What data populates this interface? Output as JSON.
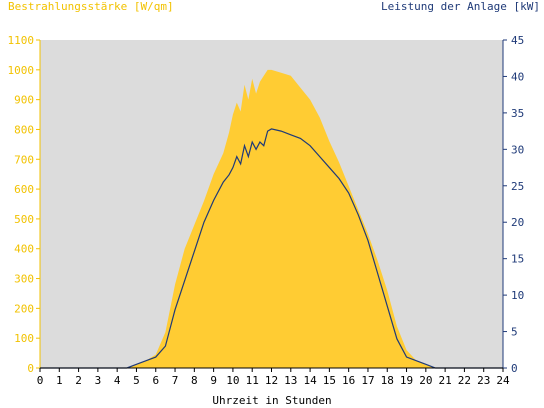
{
  "chart_data": {
    "type": "area",
    "title": "",
    "xlabel": "Uhrzeit in Stunden",
    "ylabel": "Bestrahlungsstärke [W/qm]",
    "y2label": "Leistung der Anlage [kW]",
    "xlim": [
      0,
      24
    ],
    "ylim": [
      0,
      1100
    ],
    "y2lim": [
      0,
      45
    ],
    "x_ticks": [
      "0",
      "1",
      "2",
      "3",
      "4",
      "5",
      "6",
      "7",
      "8",
      "9",
      "10",
      "11",
      "12",
      "13",
      "14",
      "15",
      "16",
      "17",
      "18",
      "19",
      "20",
      "21",
      "22",
      "23",
      "24"
    ],
    "y_ticks": [
      "0",
      "100",
      "200",
      "300",
      "400",
      "500",
      "600",
      "700",
      "800",
      "900",
      "1000",
      "1100"
    ],
    "y2_ticks": [
      "0",
      "5",
      "10",
      "15",
      "20",
      "25",
      "30",
      "35",
      "40",
      "45"
    ],
    "grid": false,
    "colors": {
      "plot_background": "#dcdcdc",
      "irradiance_fill": "#ffcc33",
      "power_line": "#1f3a78",
      "left_axis": "#f2c200",
      "right_axis": "#1f3a78"
    },
    "series": [
      {
        "name": "Bestrahlungsstärke [W/qm]",
        "axis": "left",
        "style": "area",
        "x": [
          0,
          4.5,
          5,
          5.5,
          6,
          6.5,
          7,
          7.5,
          8,
          8.5,
          9,
          9.5,
          9.8,
          10,
          10.2,
          10.4,
          10.6,
          10.8,
          11,
          11.2,
          11.4,
          11.6,
          11.8,
          12,
          12.5,
          13,
          13.5,
          14,
          14.5,
          15,
          15.5,
          16,
          16.5,
          17,
          17.5,
          18,
          18.5,
          19,
          19.5,
          20,
          20.5,
          21,
          24
        ],
        "y": [
          0,
          0,
          10,
          25,
          45,
          120,
          280,
          400,
          480,
          560,
          650,
          720,
          790,
          850,
          890,
          860,
          950,
          900,
          970,
          920,
          960,
          980,
          1000,
          1000,
          990,
          980,
          940,
          900,
          840,
          760,
          690,
          610,
          530,
          450,
          360,
          260,
          140,
          60,
          25,
          10,
          0,
          0,
          0
        ]
      },
      {
        "name": "Leistung der Anlage [kW]",
        "axis": "right",
        "style": "line",
        "x": [
          0,
          4.5,
          5,
          5.5,
          6,
          6.5,
          7,
          7.5,
          8,
          8.5,
          9,
          9.5,
          9.8,
          10,
          10.2,
          10.4,
          10.6,
          10.8,
          11,
          11.2,
          11.4,
          11.6,
          11.8,
          12,
          12.5,
          13,
          13.5,
          14,
          14.5,
          15,
          15.5,
          16,
          16.5,
          17,
          17.5,
          18,
          18.5,
          19,
          19.5,
          20,
          20.5,
          21,
          24
        ],
        "y": [
          0,
          0,
          0.5,
          1,
          1.5,
          3,
          8,
          12,
          16,
          20,
          23,
          25.5,
          26.5,
          27.5,
          29,
          28,
          30.5,
          29,
          31,
          30,
          31,
          30.5,
          32.5,
          32.8,
          32.5,
          32,
          31.5,
          30.5,
          29,
          27.5,
          26,
          24,
          21,
          17.5,
          13,
          8.5,
          4,
          1.5,
          1,
          0.5,
          0,
          0,
          0
        ]
      }
    ]
  }
}
